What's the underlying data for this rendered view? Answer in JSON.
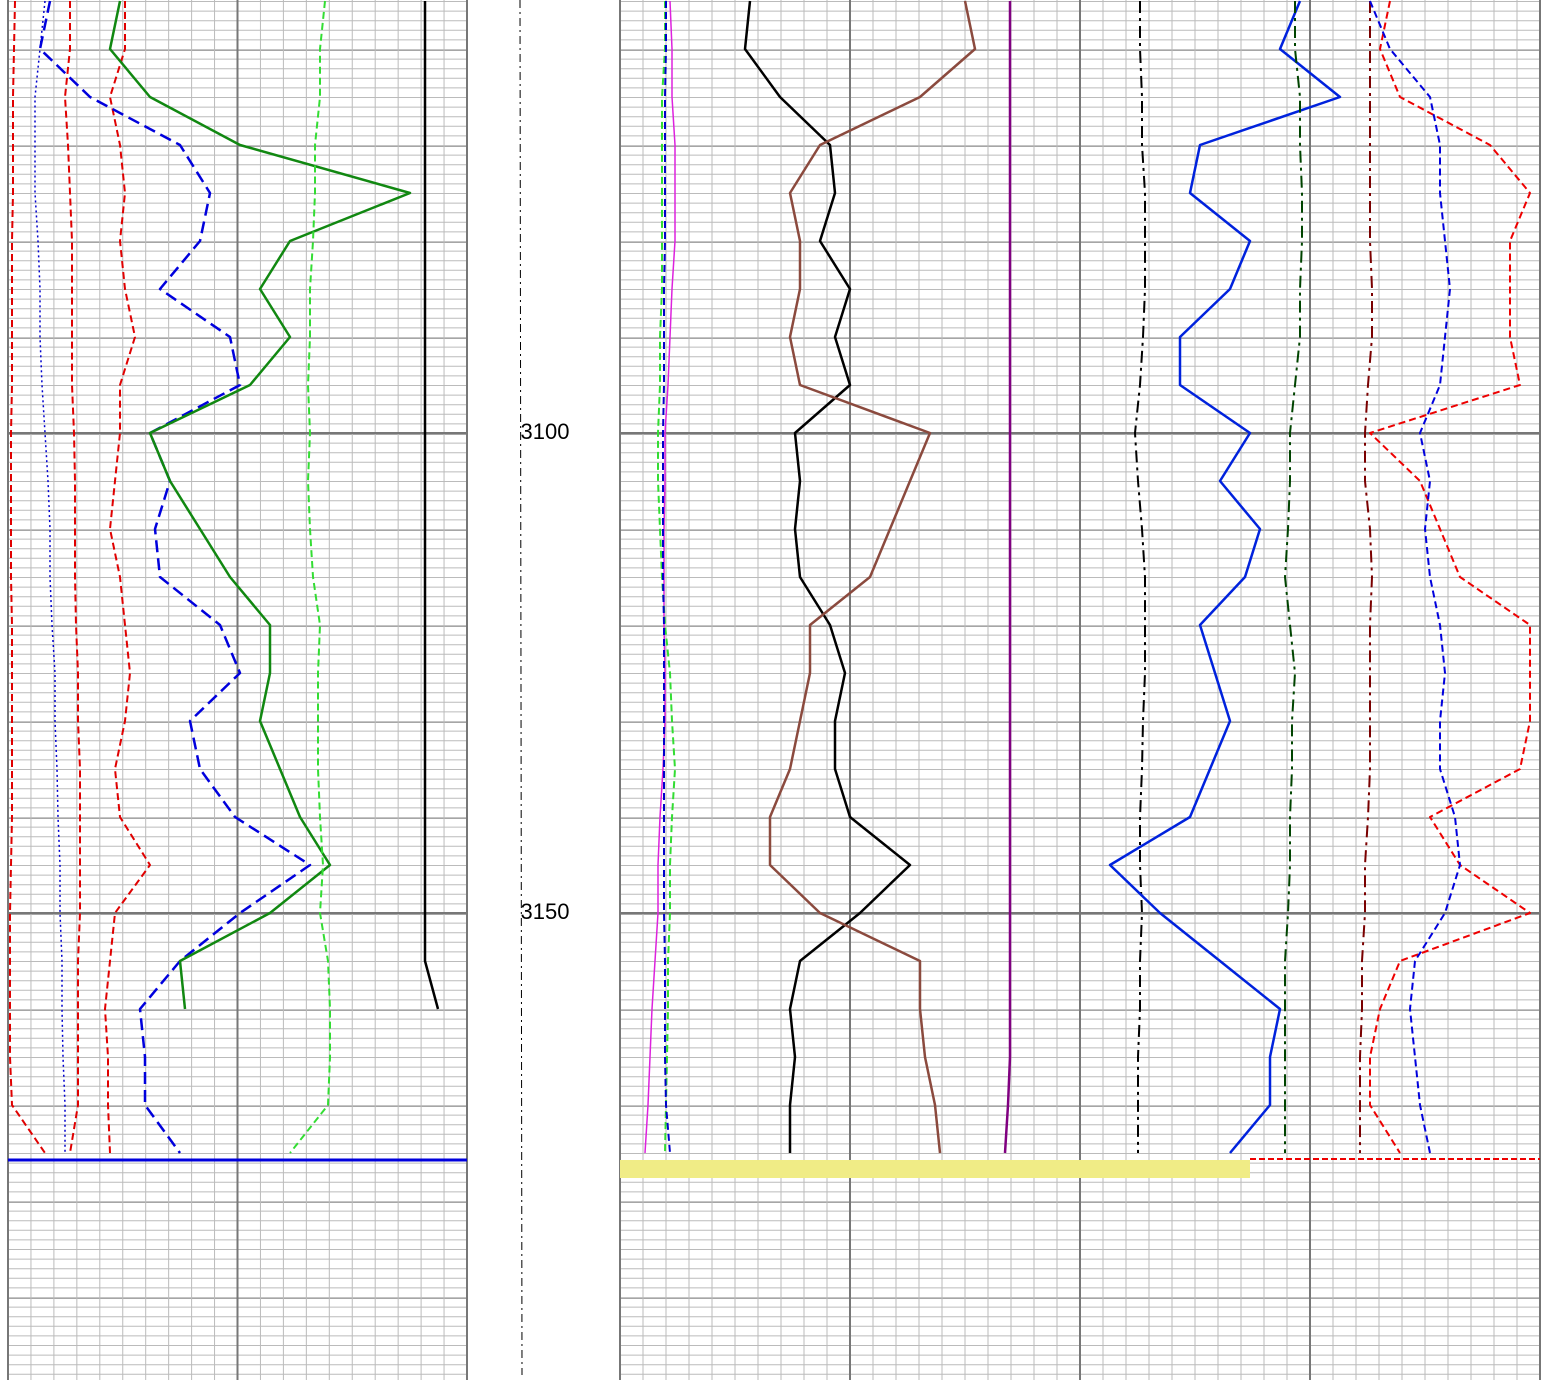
{
  "chart_data": {
    "type": "well-log",
    "ylim": [
      3054.9,
      3198.65
    ],
    "yticks": [
      3100,
      3150
    ],
    "depth": [
      3055,
      3060,
      3065,
      3070,
      3075,
      3080,
      3085,
      3090,
      3095,
      3100,
      3105,
      3110,
      3115,
      3120,
      3125,
      3130,
      3135,
      3140,
      3145,
      3150,
      3155,
      3160,
      3165,
      3170,
      3175
    ],
    "tracks": [
      {
        "xlim": [
          0,
          459
        ],
        "series": [
          {
            "color": "#e00000",
            "style": "dashed",
            "values": [
              7,
              6,
              5,
              5,
              5,
              4,
              4,
              4,
              4,
              3,
              3,
              3,
              3,
              4,
              4,
              4,
              4,
              4,
              3,
              2,
              2,
              2,
              2,
              4,
              37
            ]
          },
          {
            "color": "#0000cc",
            "style": "dotted",
            "values": [
              37,
              32,
              27,
              27,
              27,
              30,
              32,
              32,
              34,
              37,
              40,
              42,
              42,
              44,
              47,
              47,
              49,
              50,
              52,
              52,
              54,
              54,
              55,
              57,
              57
            ]
          },
          {
            "color": "#e00000",
            "style": "dashed",
            "values": [
              62,
              62,
              57,
              60,
              62,
              64,
              64,
              64,
              64,
              66,
              67,
              67,
              67,
              68,
              70,
              70,
              72,
              72,
              72,
              72,
              70,
              70,
              70,
              70,
              62
            ]
          },
          {
            "color": "#e00000",
            "style": "dashed",
            "values": [
              117,
              117,
              102,
              112,
              117,
              112,
              117,
              127,
              112,
              112,
              107,
              102,
              112,
              117,
              122,
              117,
              107,
              112,
              142,
              107,
              102,
              97,
              100,
              100,
              102
            ]
          },
          {
            "color": "#0000dd",
            "style": "dashed-bold",
            "values": [
              42,
              32,
              82,
              172,
              202,
              192,
              152,
              222,
              232,
              142,
              162,
              147,
              152,
              212,
              232,
              182,
              192,
              227,
              302,
              232,
              172,
              132,
              137,
              137,
              172
            ]
          },
          {
            "color": "#118811",
            "style": "solid",
            "values": [
              112,
              102,
              142,
              232,
              402,
              282,
              252,
              282,
              242,
              142,
              162,
              192,
              222,
              262,
              262,
              252,
              272,
              292,
              322,
              262,
              172,
              177,
              null,
              null,
              null
            ]
          },
          {
            "color": "#33dd33",
            "style": "dashed",
            "values": [
              317,
              312,
              312,
              307,
              307,
              305,
              302,
              302,
              300,
              302,
              300,
              302,
              305,
              312,
              310,
              310,
              310,
              312,
              315,
              312,
              320,
              322,
              322,
              320,
              282
            ]
          },
          {
            "color": "#000000",
            "style": "solid",
            "values": [
              417,
              417,
              417,
              417,
              417,
              417,
              417,
              417,
              417,
              417,
              417,
              417,
              417,
              417,
              417,
              417,
              417,
              417,
              417,
              417,
              417,
              430,
              null,
              null,
              null
            ]
          }
        ]
      },
      {
        "xlim": [
          0,
          460
        ],
        "series": [
          {
            "color": "#dd22dd",
            "style": "thin",
            "values": [
              50,
              52,
              52,
              55,
              55,
              55,
              52,
              50,
              48,
              45,
              45,
              44,
              44,
              44,
              45,
              45,
              43,
              40,
              38,
              38,
              35,
              32,
              30,
              28,
              25
            ]
          },
          {
            "color": "#33dd33",
            "style": "dashed",
            "values": [
              45,
              45,
              42,
              42,
              42,
              42,
              42,
              40,
              40,
              38,
              38,
              40,
              42,
              45,
              50,
              52,
              55,
              52,
              50,
              50,
              48,
              48,
              47,
              46,
              45
            ]
          },
          {
            "color": "#0000cc",
            "style": "dashed",
            "values": [
              46,
              46,
              45,
              45,
              45,
              45,
              44,
              44,
              44,
              43,
              43,
              43,
              43,
              44,
              44,
              44,
              44,
              44,
              44,
              44,
              45,
              45,
              45,
              46,
              50
            ]
          },
          {
            "color": "#000000",
            "style": "solid",
            "values": [
              130,
              125,
              160,
              210,
              215,
              200,
              230,
              215,
              230,
              175,
              180,
              175,
              180,
              210,
              225,
              215,
              215,
              230,
              290,
              240,
              180,
              170,
              175,
              170,
              170
            ]
          },
          {
            "color": "#8b4a3e",
            "style": "solid",
            "values": [
              345,
              355,
              300,
              200,
              170,
              180,
              180,
              170,
              180,
              310,
              290,
              270,
              250,
              190,
              190,
              180,
              170,
              150,
              150,
              200,
              300,
              300,
              305,
              315,
              320
            ]
          },
          {
            "color": "#800080",
            "style": "solid",
            "values": [
              390,
              390,
              390,
              390,
              390,
              390,
              390,
              390,
              390,
              390,
              390,
              390,
              390,
              390,
              390,
              390,
              390,
              390,
              390,
              390,
              390,
              390,
              390,
              388,
              385
            ]
          }
        ]
      },
      {
        "xlim": [
          0,
          460
        ],
        "series": [
          {
            "color": "#000000",
            "style": "dashdot",
            "values": [
              60,
              60,
              62,
              62,
              65,
              65,
              65,
              63,
              60,
              55,
              58,
              62,
              65,
              65,
              65,
              63,
              62,
              60,
              60,
              62,
              60,
              60,
              58,
              58,
              58
            ]
          },
          {
            "color": "#0022dd",
            "style": "solid",
            "values": [
              220,
              200,
              260,
              120,
              110,
              170,
              150,
              100,
              100,
              170,
              140,
              180,
              165,
              120,
              135,
              150,
              130,
              110,
              30,
              80,
              140,
              200,
              190,
              190,
              150
            ]
          },
          {
            "color": "#004400",
            "style": "dashdot",
            "values": [
              215,
              215,
              220,
              220,
              222,
              222,
              220,
              220,
              215,
              210,
              210,
              208,
              205,
              210,
              215,
              212,
              212,
              210,
              210,
              208,
              205,
              205,
              205,
              205,
              205
            ]
          },
          {
            "color": "#7a0000",
            "style": "dashdot",
            "values": [
              290,
              290,
              290,
              290,
              290,
              290,
              292,
              292,
              288,
              285,
              285,
              290,
              292,
              290,
              290,
              290,
              290,
              288,
              285,
              285,
              282,
              282,
              280,
              280,
              280
            ]
          },
          {
            "color": "#ee0000",
            "style": "dashed",
            "values": [
              310,
              300,
              320,
              410,
              450,
              430,
              430,
              430,
              440,
              290,
              340,
              360,
              380,
              450,
              450,
              450,
              440,
              350,
              380,
              450,
              320,
              300,
              290,
              290,
              320
            ]
          },
          {
            "color": "#0000dd",
            "style": "dashed",
            "values": [
              290,
              310,
              350,
              360,
              360,
              365,
              370,
              365,
              360,
              340,
              350,
              345,
              350,
              360,
              365,
              360,
              360,
              375,
              380,
              365,
              335,
              330,
              335,
              340,
              350
            ]
          }
        ]
      }
    ]
  }
}
